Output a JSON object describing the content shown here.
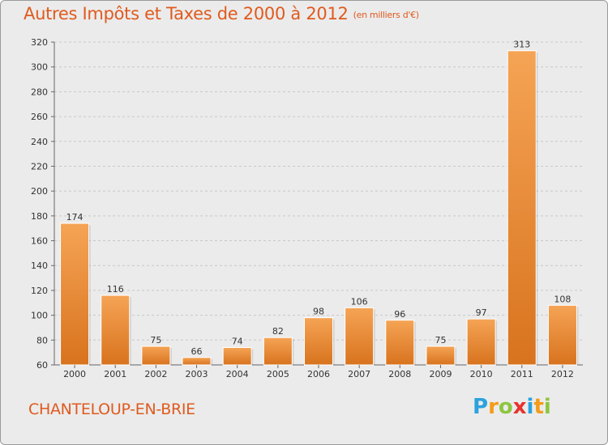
{
  "title": "Autres Impôts et Taxes de 2000 à 2012",
  "subtitle": "(en milliers d'€)",
  "commune": "CHANTELOUP-EN-BRIE",
  "logo": {
    "text": "Proxiti",
    "letters": [
      "P",
      "r",
      "o",
      "x",
      "i",
      "t",
      "i"
    ],
    "colors": [
      "#2aa2dd",
      "#f39c18",
      "#8cc63f",
      "#e8322e",
      "#2aa2dd",
      "#f39c18",
      "#8cc63f"
    ]
  },
  "colors": {
    "accent": "#e05a1e",
    "bar_light": "#f5a455",
    "bar_dark": "#d8731e",
    "background": "#ebebeb"
  },
  "chart_data": {
    "type": "bar",
    "categories": [
      "2000",
      "2001",
      "2002",
      "2003",
      "2004",
      "2005",
      "2006",
      "2007",
      "2008",
      "2009",
      "2010",
      "2011",
      "2012"
    ],
    "values": [
      174,
      116,
      75,
      66,
      74,
      82,
      98,
      106,
      96,
      75,
      97,
      313,
      108
    ],
    "value_labels": [
      "174",
      "116",
      "75",
      "66",
      "74",
      "82",
      "98",
      "106",
      "96",
      "75",
      "97",
      "313",
      "108"
    ],
    "ylim": [
      60,
      320
    ],
    "yticks": [
      60,
      80,
      100,
      120,
      140,
      160,
      180,
      200,
      220,
      240,
      260,
      280,
      300,
      320
    ],
    "grid": true,
    "xlabel": "",
    "ylabel": ""
  }
}
